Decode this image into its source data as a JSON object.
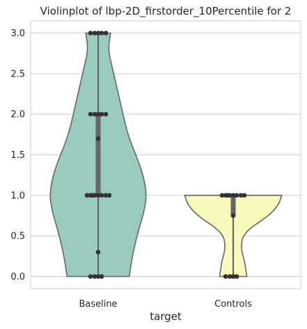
{
  "chart_data": {
    "type": "violin",
    "title": "Violinplot of lbp-2D_firstorder_10Percentile for 2",
    "xlabel": "target",
    "ylabel": "",
    "categories": [
      "Baseline",
      "Controls"
    ],
    "ylim": [
      -0.15,
      3.15
    ],
    "yticks": [
      "0.0",
      "0.5",
      "1.0",
      "1.5",
      "2.0",
      "2.5",
      "3.0"
    ],
    "grid": true,
    "colors": {
      "Baseline": "#99cbc0",
      "Controls": "#f9f8bd",
      "outline": "#666666",
      "points": "#333333",
      "box": "#666666"
    },
    "violins": [
      {
        "category": "Baseline",
        "range": [
          0,
          3
        ],
        "quartiles": [
          1,
          2
        ],
        "median": 1,
        "width_profile": [
          [
            0.0,
            0.5
          ],
          [
            0.3,
            0.56
          ],
          [
            0.6,
            0.66
          ],
          [
            0.8,
            0.74
          ],
          [
            1.0,
            0.78
          ],
          [
            1.2,
            0.74
          ],
          [
            1.4,
            0.66
          ],
          [
            1.6,
            0.55
          ],
          [
            1.8,
            0.46
          ],
          [
            2.0,
            0.4
          ],
          [
            2.2,
            0.34
          ],
          [
            2.4,
            0.28
          ],
          [
            2.6,
            0.22
          ],
          [
            2.8,
            0.16
          ],
          [
            3.0,
            0.2
          ]
        ],
        "points": [
          3,
          3,
          3,
          3,
          3,
          2,
          2,
          2,
          2,
          2,
          1.7,
          1,
          1,
          1,
          1,
          1,
          1,
          1,
          1,
          0.3,
          0,
          0,
          0,
          0
        ]
      },
      {
        "category": "Controls",
        "range": [
          0,
          1
        ],
        "quartiles": [
          0.75,
          1
        ],
        "median": 1,
        "width_profile": [
          [
            0.0,
            0.22
          ],
          [
            0.1,
            0.2
          ],
          [
            0.2,
            0.18
          ],
          [
            0.3,
            0.14
          ],
          [
            0.4,
            0.13
          ],
          [
            0.5,
            0.16
          ],
          [
            0.6,
            0.28
          ],
          [
            0.7,
            0.48
          ],
          [
            0.8,
            0.64
          ],
          [
            0.9,
            0.74
          ],
          [
            1.0,
            0.78
          ]
        ],
        "points": [
          1,
          1,
          1,
          1,
          1,
          1,
          1,
          1,
          0.75,
          0,
          0,
          0,
          0
        ]
      }
    ]
  }
}
